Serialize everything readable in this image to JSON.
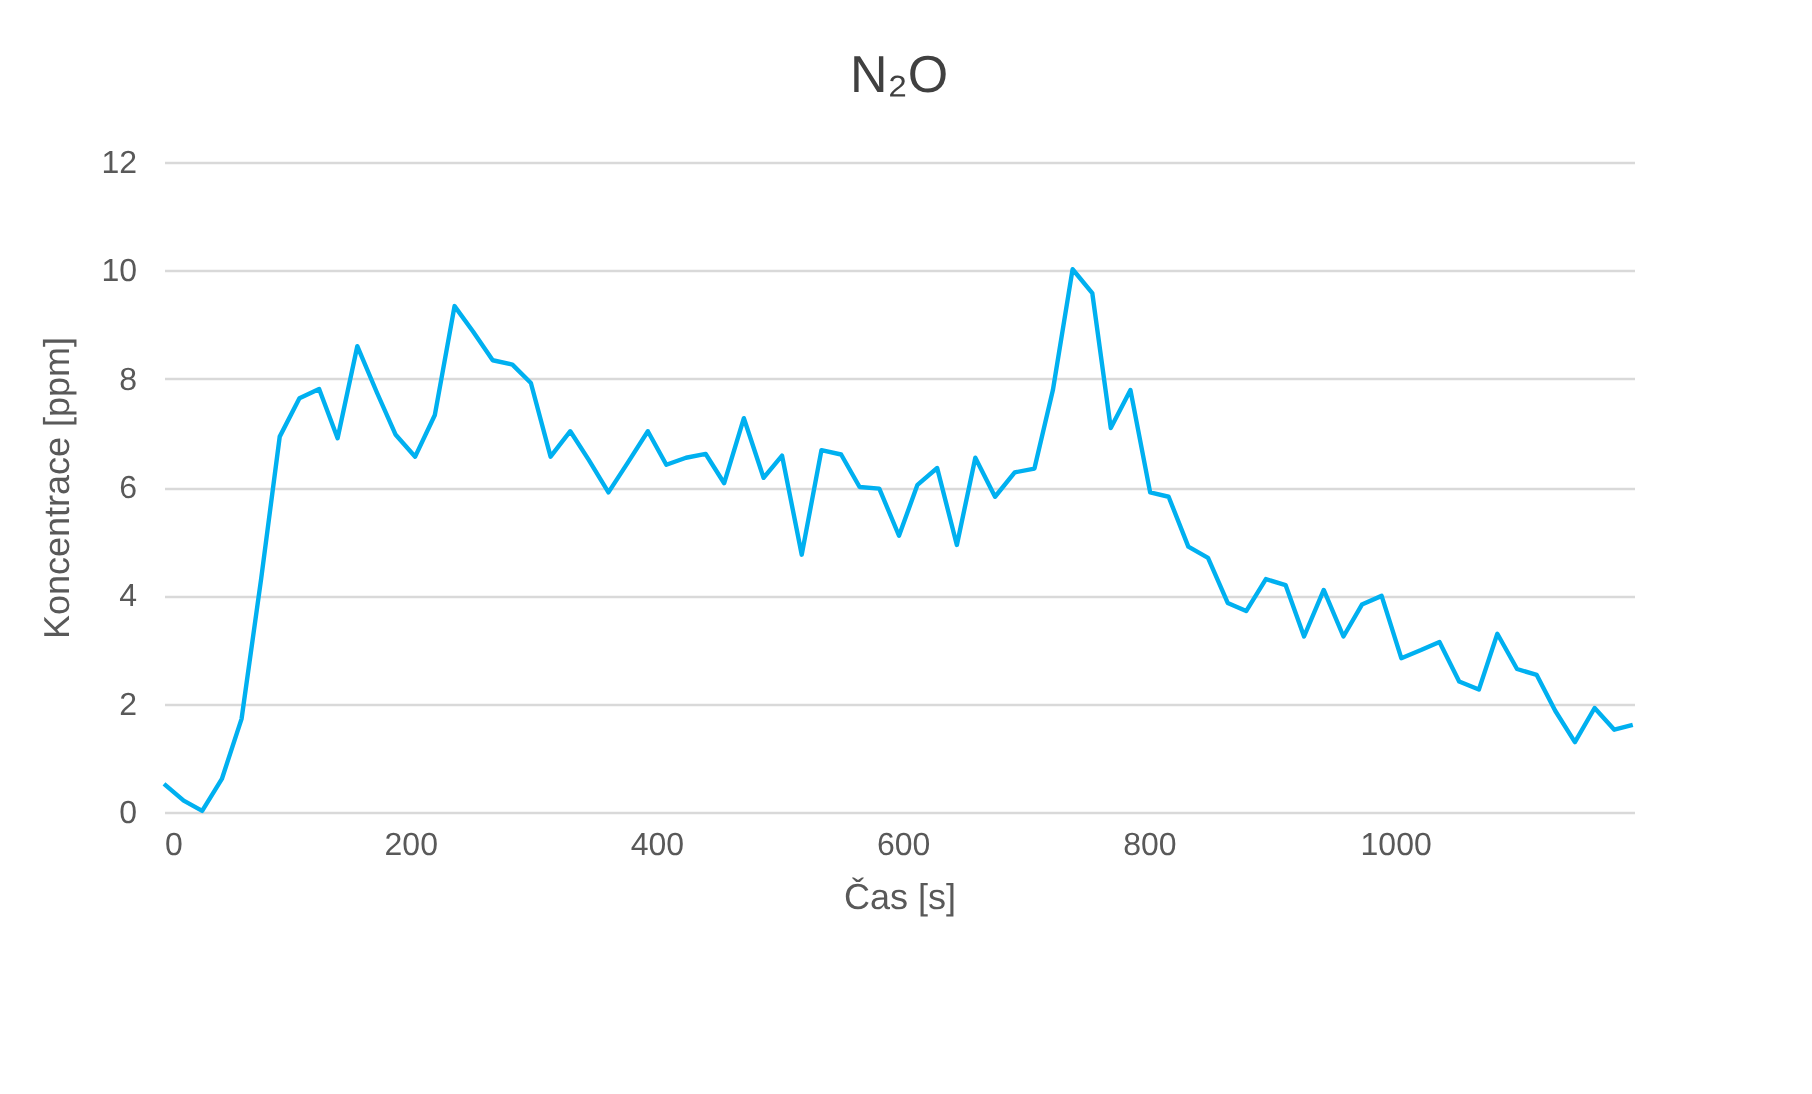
{
  "chart_data": {
    "type": "line",
    "title": "N₂O",
    "xlabel": "Čas [s]",
    "ylabel": "Koncentrace [ppm]",
    "x": [
      0,
      16,
      31,
      47,
      63,
      79,
      94,
      110,
      126,
      141,
      157,
      173,
      188,
      204,
      220,
      236,
      251,
      267,
      283,
      298,
      314,
      330,
      345,
      361,
      377,
      393,
      408,
      424,
      440,
      455,
      471,
      487,
      502,
      518,
      534,
      550,
      565,
      581,
      597,
      612,
      628,
      644,
      659,
      675,
      691,
      707,
      722,
      738,
      754,
      769,
      785,
      801,
      816,
      832,
      848,
      864,
      879,
      895,
      911,
      926,
      942,
      958,
      973,
      989,
      1005,
      1021,
      1036,
      1052,
      1068,
      1083,
      1099,
      1115,
      1130,
      1146,
      1162,
      1178,
      1193
    ],
    "series": [
      {
        "color": "#00b0f0",
        "values": [
          0.52,
          0.21,
          0.02,
          0.61,
          1.72,
          4.32,
          6.93,
          7.64,
          7.81,
          6.9,
          8.6,
          7.74,
          6.97,
          6.56,
          7.33,
          9.34,
          8.87,
          8.34,
          8.26,
          7.92,
          6.56,
          7.03,
          6.5,
          5.9,
          6.46,
          7.03,
          6.41,
          6.54,
          6.61,
          6.07,
          7.27,
          6.17,
          6.58,
          4.75,
          6.68,
          6.6,
          6.0,
          5.97,
          5.1,
          6.04,
          6.35,
          4.93,
          6.54,
          5.82,
          6.27,
          6.34,
          7.79,
          10.02,
          9.58,
          7.09,
          7.79,
          5.9,
          5.82,
          4.9,
          4.69,
          3.86,
          3.71,
          4.3,
          4.19,
          3.24,
          4.1,
          3.24,
          3.83,
          3.99,
          2.84,
          2.99,
          3.14,
          2.41,
          2.26,
          3.29,
          2.64,
          2.53,
          1.87,
          1.29,
          1.92,
          1.52,
          1.61
        ]
      }
    ],
    "xlim": [
      0,
      1194
    ],
    "xticks": [
      0,
      200,
      400,
      600,
      800,
      1000
    ],
    "ylim": [
      0,
      12
    ],
    "yticks": [
      0,
      2,
      4,
      6,
      8,
      10,
      12
    ],
    "grid": "y",
    "marker": "none",
    "line_style": "solid"
  }
}
